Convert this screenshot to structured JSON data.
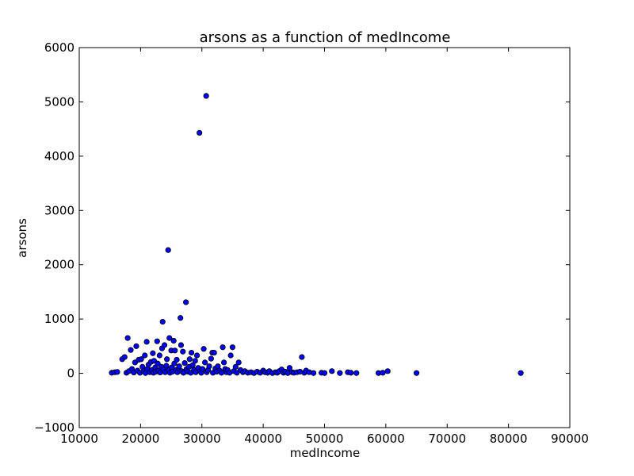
{
  "chart_data": {
    "type": "scatter",
    "title": "arsons as a function of medIncome",
    "xlabel": "medIncome",
    "ylabel": "arsons",
    "xlim": [
      10000,
      90000
    ],
    "ylim": [
      -1000,
      6000
    ],
    "xticks": [
      10000,
      20000,
      30000,
      40000,
      50000,
      60000,
      70000,
      80000,
      90000
    ],
    "yticks": [
      -1000,
      0,
      1000,
      2000,
      3000,
      4000,
      5000,
      6000
    ],
    "xtick_labels": [
      "10000",
      "20000",
      "30000",
      "40000",
      "50000",
      "60000",
      "70000",
      "80000",
      "90000"
    ],
    "ytick_labels": [
      "−1000",
      "0",
      "1000",
      "2000",
      "3000",
      "4000",
      "5000",
      "6000"
    ],
    "grid": false,
    "marker_color": "#0000ff",
    "marker_edge_color": "#000000",
    "series": [
      {
        "points": [
          [
            15300,
            10
          ],
          [
            15800,
            20
          ],
          [
            16200,
            25
          ],
          [
            17000,
            260
          ],
          [
            17400,
            300
          ],
          [
            17900,
            650
          ],
          [
            17700,
            10
          ],
          [
            18100,
            40
          ],
          [
            18400,
            430
          ],
          [
            18600,
            80
          ],
          [
            18900,
            15
          ],
          [
            19100,
            200
          ],
          [
            19300,
            500
          ],
          [
            19500,
            50
          ],
          [
            19700,
            250
          ],
          [
            19900,
            10
          ],
          [
            20100,
            260
          ],
          [
            20300,
            120
          ],
          [
            20500,
            40
          ],
          [
            20700,
            330
          ],
          [
            20800,
            5
          ],
          [
            21000,
            580
          ],
          [
            21100,
            80
          ],
          [
            21300,
            160
          ],
          [
            21500,
            20
          ],
          [
            21700,
            210
          ],
          [
            21800,
            60
          ],
          [
            22000,
            370
          ],
          [
            22100,
            10
          ],
          [
            22200,
            230
          ],
          [
            22400,
            110
          ],
          [
            22500,
            30
          ],
          [
            22700,
            590
          ],
          [
            22800,
            180
          ],
          [
            22900,
            50
          ],
          [
            23100,
            330
          ],
          [
            23200,
            15
          ],
          [
            23400,
            120
          ],
          [
            23500,
            460
          ],
          [
            23600,
            950
          ],
          [
            23700,
            70
          ],
          [
            23900,
            520
          ],
          [
            24000,
            20
          ],
          [
            24200,
            140
          ],
          [
            24300,
            260
          ],
          [
            24500,
            2270
          ],
          [
            24600,
            60
          ],
          [
            24700,
            650
          ],
          [
            24800,
            10
          ],
          [
            25000,
            420
          ],
          [
            25100,
            110
          ],
          [
            25200,
            30
          ],
          [
            25400,
            600
          ],
          [
            25500,
            180
          ],
          [
            25600,
            420
          ],
          [
            25800,
            60
          ],
          [
            25900,
            250
          ],
          [
            26000,
            20
          ],
          [
            26200,
            90
          ],
          [
            26300,
            130
          ],
          [
            26500,
            1020
          ],
          [
            26600,
            520
          ],
          [
            26700,
            40
          ],
          [
            26900,
            400
          ],
          [
            27000,
            10
          ],
          [
            27200,
            190
          ],
          [
            27400,
            1310
          ],
          [
            27500,
            80
          ],
          [
            27700,
            30
          ],
          [
            27900,
            120
          ],
          [
            28000,
            260
          ],
          [
            28200,
            10
          ],
          [
            28300,
            380
          ],
          [
            28500,
            150
          ],
          [
            28700,
            60
          ],
          [
            28900,
            230
          ],
          [
            29000,
            20
          ],
          [
            29200,
            330
          ],
          [
            29400,
            100
          ],
          [
            29600,
            4430
          ],
          [
            29700,
            40
          ],
          [
            29900,
            10
          ],
          [
            30100,
            80
          ],
          [
            30300,
            450
          ],
          [
            30500,
            200
          ],
          [
            30700,
            5110
          ],
          [
            30800,
            20
          ],
          [
            31000,
            60
          ],
          [
            31200,
            130
          ],
          [
            31500,
            270
          ],
          [
            31700,
            380
          ],
          [
            31800,
            10
          ],
          [
            32000,
            380
          ],
          [
            32200,
            90
          ],
          [
            32400,
            30
          ],
          [
            32600,
            130
          ],
          [
            32900,
            50
          ],
          [
            33200,
            10
          ],
          [
            33400,
            480
          ],
          [
            33600,
            200
          ],
          [
            33800,
            80
          ],
          [
            34000,
            20
          ],
          [
            34200,
            60
          ],
          [
            34500,
            10
          ],
          [
            34700,
            330
          ],
          [
            35000,
            480
          ],
          [
            35200,
            40
          ],
          [
            35500,
            120
          ],
          [
            35700,
            10
          ],
          [
            36000,
            200
          ],
          [
            36300,
            60
          ],
          [
            36700,
            20
          ],
          [
            37000,
            40
          ],
          [
            37500,
            10
          ],
          [
            38000,
            20
          ],
          [
            38500,
            5
          ],
          [
            39000,
            30
          ],
          [
            39500,
            10
          ],
          [
            40000,
            50
          ],
          [
            40300,
            20
          ],
          [
            40700,
            10
          ],
          [
            41000,
            40
          ],
          [
            41500,
            5
          ],
          [
            42000,
            20
          ],
          [
            42300,
            10
          ],
          [
            42600,
            40
          ],
          [
            43000,
            70
          ],
          [
            43300,
            10
          ],
          [
            43600,
            30
          ],
          [
            44000,
            5
          ],
          [
            44300,
            100
          ],
          [
            44700,
            20
          ],
          [
            45000,
            10
          ],
          [
            45500,
            20
          ],
          [
            46000,
            30
          ],
          [
            46300,
            300
          ],
          [
            46700,
            10
          ],
          [
            47000,
            50
          ],
          [
            47500,
            20
          ],
          [
            48200,
            5
          ],
          [
            49500,
            10
          ],
          [
            50000,
            5
          ],
          [
            51200,
            40
          ],
          [
            52500,
            5
          ],
          [
            53800,
            20
          ],
          [
            54300,
            10
          ],
          [
            55200,
            5
          ],
          [
            58800,
            5
          ],
          [
            59500,
            10
          ],
          [
            60300,
            40
          ],
          [
            65000,
            5
          ],
          [
            82000,
            5
          ]
        ]
      }
    ]
  }
}
